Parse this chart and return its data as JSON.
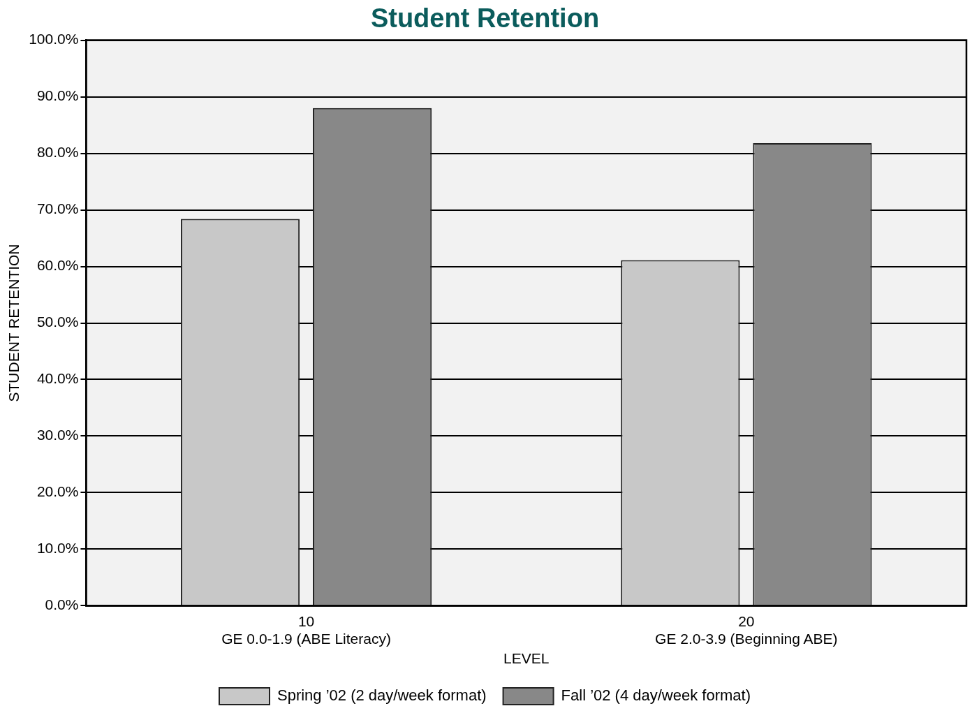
{
  "chart_data": {
    "type": "bar",
    "title": "Student Retention",
    "xlabel": "LEVEL",
    "ylabel": "STUDENT RETENTION",
    "categories": [
      "10\nGE 0.0-1.9 (ABE Literacy)",
      "20\nGE 2.0-3.9 (Beginning ABE)"
    ],
    "series": [
      {
        "name": "Spring ’02 (2 day/week format)",
        "color": "#c8c8c8",
        "values": [
          68.4,
          61.1
        ]
      },
      {
        "name": "Fall ’02 (4 day/week format)",
        "color": "#888888",
        "values": [
          88.0,
          81.8
        ]
      }
    ],
    "ylim": [
      0,
      100
    ],
    "yticks": [
      {
        "value": 0,
        "label": "0.0%"
      },
      {
        "value": 10,
        "label": "10.0%"
      },
      {
        "value": 20,
        "label": "20.0%"
      },
      {
        "value": 30,
        "label": "30.0%"
      },
      {
        "value": 40,
        "label": "40.0%"
      },
      {
        "value": 50,
        "label": "50.0%"
      },
      {
        "value": 60,
        "label": "60.0%"
      },
      {
        "value": 70,
        "label": "70.0%"
      },
      {
        "value": 80,
        "label": "80.0%"
      },
      {
        "value": 90,
        "label": "90.0%"
      },
      {
        "value": 100,
        "label": "100.0%"
      }
    ],
    "grid": "y",
    "legend": "bottom"
  }
}
